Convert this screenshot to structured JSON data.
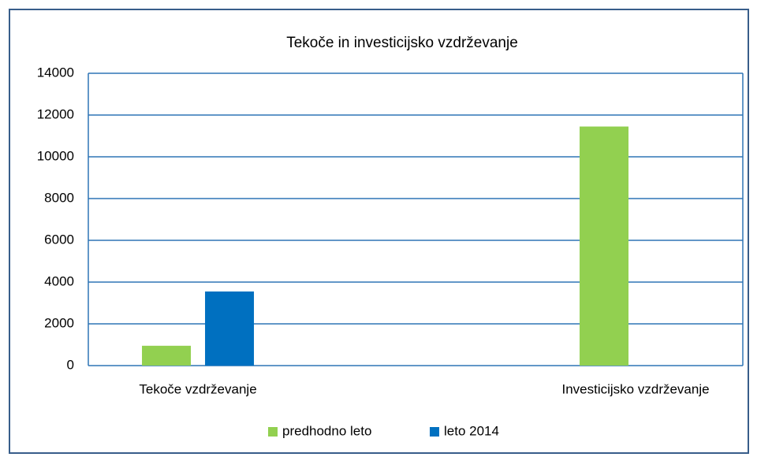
{
  "chart_data": {
    "type": "bar",
    "title": "Tekoče in investicijsko vzdrževanje",
    "categories": [
      "Tekoče vzdrževanje",
      "Investicijsko vzdrževanje"
    ],
    "series": [
      {
        "name": "predhodno leto",
        "color": "#92d050",
        "values": [
          950,
          11450
        ]
      },
      {
        "name": "leto 2014",
        "color": "#0070c0",
        "values": [
          3550,
          0
        ]
      }
    ],
    "ylim": [
      0,
      14000
    ],
    "yticks": [
      0,
      2000,
      4000,
      6000,
      8000,
      10000,
      12000,
      14000
    ],
    "grid": true,
    "legend": "bottom"
  }
}
